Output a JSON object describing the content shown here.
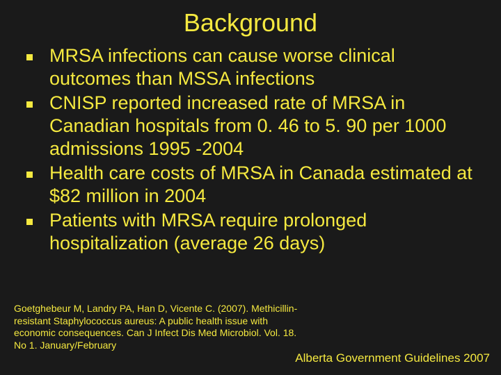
{
  "colors": {
    "background": "#1a1a1a",
    "text": "#f5e940",
    "bullet": "#f5e940"
  },
  "typography": {
    "title_fontsize": 36,
    "body_fontsize": 27,
    "citation_fontsize": 14,
    "footer_fontsize": 17,
    "title_family": "Trebuchet MS",
    "body_family": "Trebuchet MS"
  },
  "title": "Background",
  "bullets": [
    "MRSA infections can cause worse clinical outcomes than MSSA infections",
    "CNISP reported increased rate of MRSA in Canadian hospitals from 0. 46 to 5. 90 per 1000 admissions 1995 -2004",
    "Health care costs of MRSA in Canada estimated at $82 million in 2004",
    "Patients with MRSA require prolonged hospitalization (average 26 days)"
  ],
  "citation": "Goetghebeur M, Landry PA, Han D, Vicente C. (2007). Methicillin-resistant Staphylococcus aureus: A public health issue with economic consequences. Can J Infect Dis Med Microbiol. Vol. 18. No 1. January/February",
  "footer": "Alberta Government Guidelines 2007"
}
